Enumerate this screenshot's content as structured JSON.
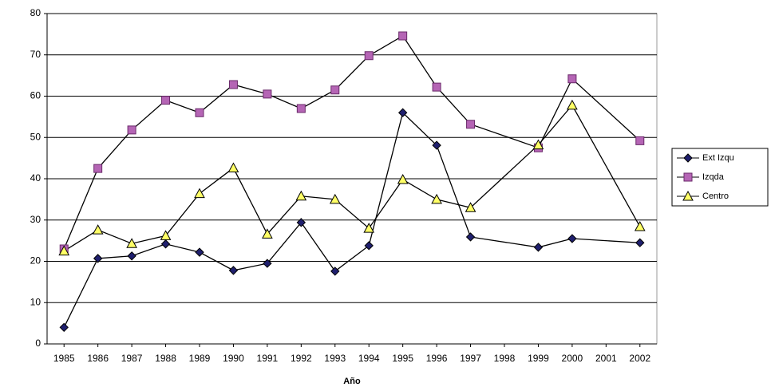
{
  "chart_data": {
    "type": "line",
    "x_label": "Año",
    "x": [
      1985,
      1986,
      1987,
      1988,
      1989,
      1990,
      1991,
      1992,
      1993,
      1994,
      1995,
      1996,
      1997,
      1999,
      2000,
      2002
    ],
    "series": [
      {
        "name": "Ext Izqu",
        "color": "#1f1f6e",
        "marker": "diamond",
        "values": [
          4,
          20.7,
          21.3,
          24.2,
          22.2,
          17.8,
          19.5,
          29.4,
          17.6,
          23.8,
          56,
          48.1,
          25.9,
          23.4,
          25.5,
          24.5
        ]
      },
      {
        "name": "Izqda",
        "color": "#b565b5",
        "marker": "square",
        "values": [
          23,
          42.5,
          51.8,
          59,
          56,
          62.8,
          60.5,
          57,
          61.5,
          69.8,
          74.6,
          62.2,
          53.2,
          47.5,
          64.2,
          49.2
        ]
      },
      {
        "name": "Centro",
        "color": "#ffff66",
        "marker": "triangle",
        "values": [
          22.5,
          27.6,
          24.3,
          26.2,
          36.4,
          42.6,
          26.6,
          35.8,
          35,
          28,
          39.8,
          35,
          33,
          48.2,
          57.8,
          28.4
        ]
      }
    ],
    "xlim": [
      1984.5,
      2002.5
    ],
    "xticks": [
      1985,
      1986,
      1987,
      1988,
      1989,
      1990,
      1991,
      1992,
      1993,
      1994,
      1995,
      1996,
      1997,
      1998,
      1999,
      2000,
      2001,
      2002
    ],
    "ylim": [
      0,
      80
    ],
    "yticks": [
      0,
      10,
      20,
      30,
      40,
      50,
      60,
      70,
      80
    ],
    "grid": true,
    "legend": "right"
  }
}
